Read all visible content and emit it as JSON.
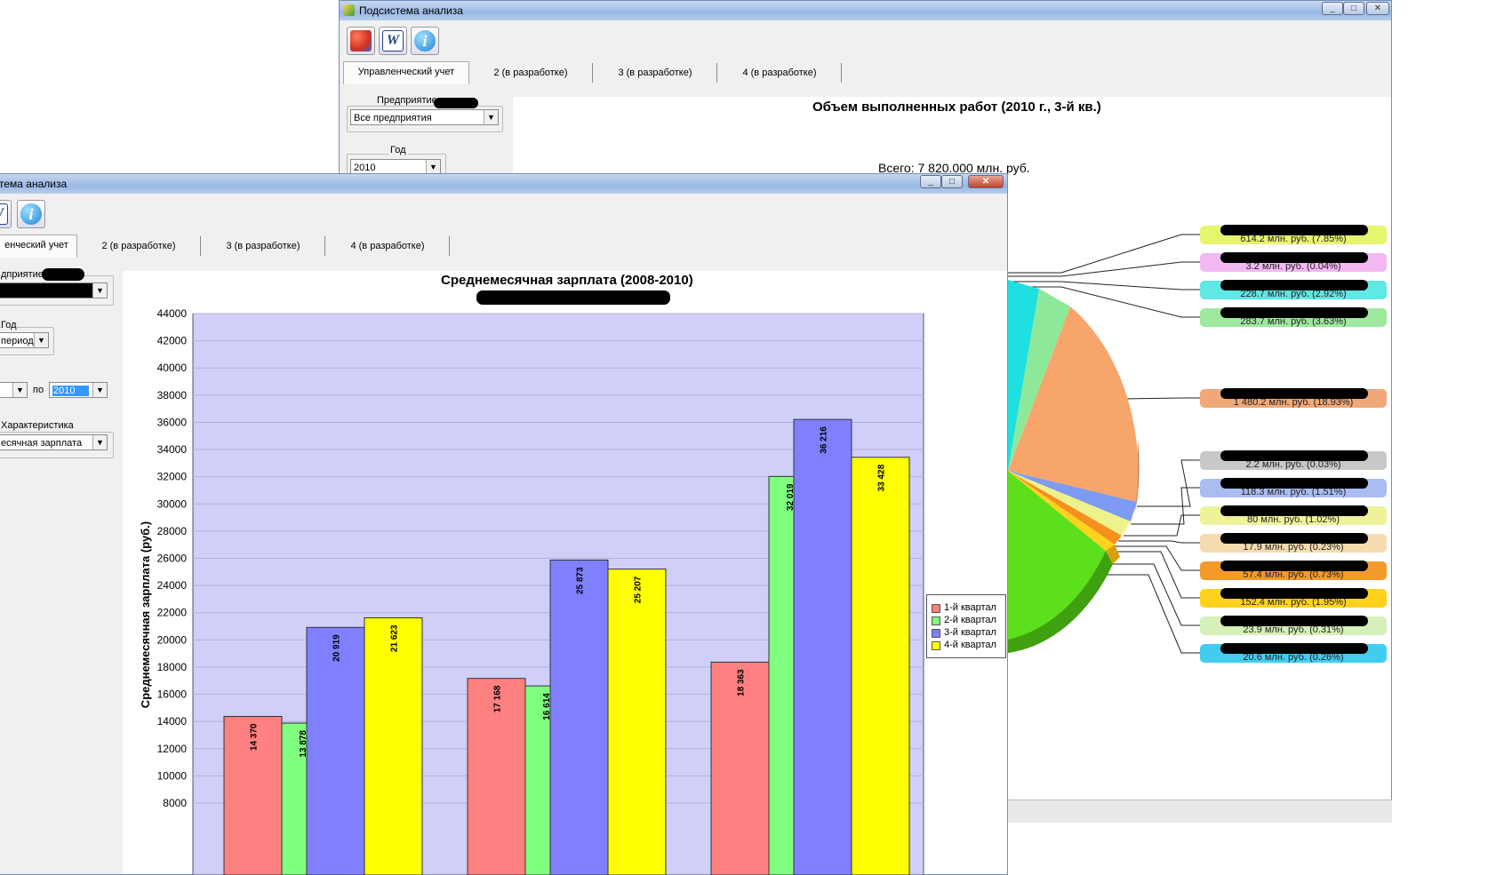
{
  "back_window": {
    "title": "Подсистема анализа",
    "tabs": [
      "Управленческий учет",
      "2 (в разработке)",
      "3 (в разработке)",
      "4 (в разработке)"
    ],
    "enterprise_label": "Предприятие",
    "enterprise_value": "Все предприятия",
    "year_label": "Год",
    "year_value": "2010",
    "chart_title": "Объем выполненных работ (2010 г., 3-й кв.)",
    "total_text": "Всего: 7 820.000 млн. руб.",
    "pie_labels": [
      {
        "text": "614.2 млн. руб. (7.85%)",
        "color": "#e6f56e"
      },
      {
        "text": "3.2 млн. руб. (0.04%)",
        "color": "#f2b8f2"
      },
      {
        "text": "228.7 млн. руб. (2.92%)",
        "color": "#5fe8e4"
      },
      {
        "text": "283.7 млн. руб. (3.63%)",
        "color": "#9ee8a0"
      },
      {
        "text": "1 480.2 млн. руб. (18.93%)",
        "color": "#f0a878"
      },
      {
        "text": "2.2 млн. руб. (0.03%)",
        "color": "#c8c8c8"
      },
      {
        "text": "118.3 млн. руб. (1.51%)",
        "color": "#a9bdf2"
      },
      {
        "text": "80 млн. руб. (1.02%)",
        "color": "#eef29a"
      },
      {
        "text": "17.9 млн. руб. (0.23%)",
        "color": "#f5dcb0"
      },
      {
        "text": "57.4 млн. руб. (0.73%)",
        "color": "#f59a2a"
      },
      {
        "text": "152.4 млн. руб. (1.95%)",
        "color": "#ffd21e"
      },
      {
        "text": "23.9 млн. руб. (0.31%)",
        "color": "#d5f0b8"
      },
      {
        "text": "20.6 млн. руб. (0.26%)",
        "color": "#42cdf0"
      }
    ]
  },
  "front_window": {
    "title": "тема анализа",
    "tabs": [
      "енческий учет",
      "2 (в разработке)",
      "3 (в разработке)",
      "4 (в разработке)"
    ],
    "enterprise_label": "дприятие",
    "year_label": "Год",
    "year_value": "период",
    "from_to_label": "по",
    "to_value": "2010",
    "characteristic_label": "Характеристика",
    "characteristic_value": "есячная зарплата"
  },
  "chart_data": {
    "type": "bar",
    "title": "Среднемесячная зарплата (2008-2010)",
    "ylabel": "Среднемесячная зарплата (руб.)",
    "ylim": [
      8000,
      44000
    ],
    "yticks": [
      "44000",
      "42000",
      "40000",
      "38000",
      "36000",
      "34000",
      "32000",
      "30000",
      "28000",
      "26000",
      "24000",
      "22000",
      "20000",
      "18000",
      "16000",
      "14000",
      "12000",
      "10000",
      "8000"
    ],
    "groups": 3,
    "series": [
      {
        "name": "1-й квартал",
        "color": "#ff8080",
        "values": [
          14370,
          17168,
          18363
        ],
        "labels": [
          "14 370",
          "17 168",
          "18 363"
        ]
      },
      {
        "name": "2-й квартал",
        "color": "#80ff80",
        "values": [
          13878,
          16614,
          32019
        ],
        "labels": [
          "13 878",
          "16 614",
          "32 019"
        ]
      },
      {
        "name": "3-й квартал",
        "color": "#8080ff",
        "values": [
          20919,
          25873,
          36216
        ],
        "labels": [
          "20 919",
          "25 873",
          "36 216"
        ]
      },
      {
        "name": "4-й квартал",
        "color": "#ffff00",
        "values": [
          21623,
          25207,
          33428
        ],
        "labels": [
          "21 623",
          "25 207",
          "33 428"
        ]
      }
    ],
    "plot_background": "#cfcff8",
    "grid": true,
    "legend_position": "right"
  }
}
